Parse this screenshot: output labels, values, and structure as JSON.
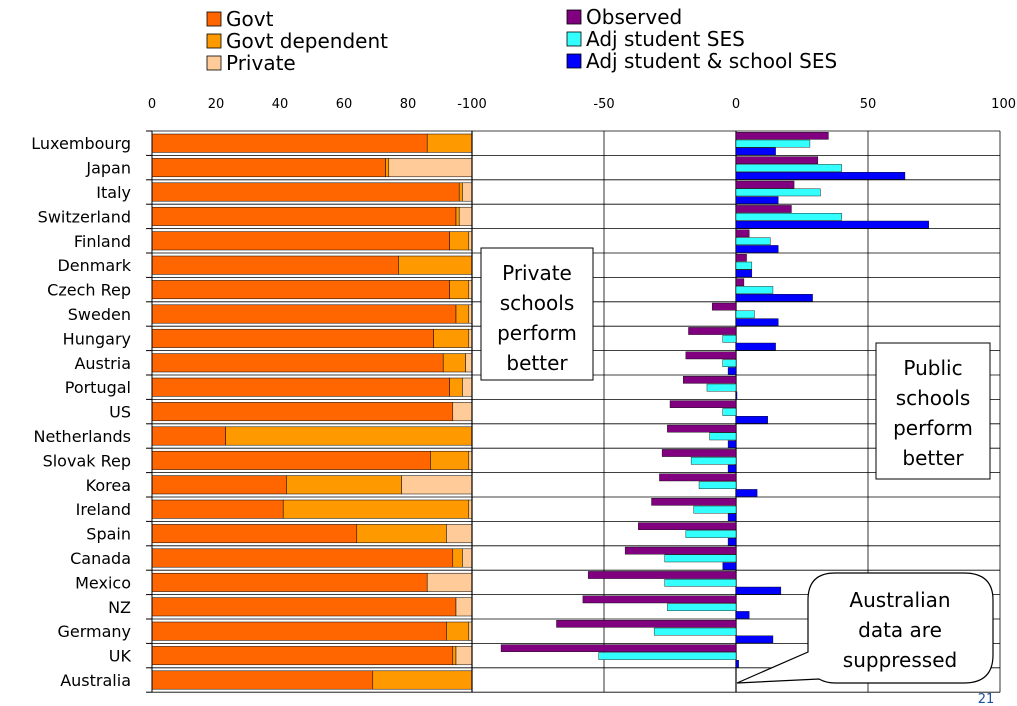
{
  "chart_data": [
    {
      "type": "bar",
      "orientation": "horizontal",
      "stacked": true,
      "xlim": [
        0,
        100
      ],
      "x_ticks": [
        "0",
        "20",
        "40",
        "60",
        "80",
        "100"
      ],
      "categories": [
        "Luxembourg",
        "Japan",
        "Italy",
        "Switzerland",
        "Finland",
        "Denmark",
        "Czech Rep",
        "Sweden",
        "Hungary",
        "Austria",
        "Portugal",
        "US",
        "Netherlands",
        "Slovak Rep",
        "Korea",
        "Ireland",
        "Spain",
        "Canada",
        "Mexico",
        "NZ",
        "Germany",
        "UK",
        "Australia"
      ],
      "series": [
        {
          "name": "Govt",
          "color": "#ff6600",
          "values": [
            86,
            73,
            96,
            95,
            93,
            77,
            93,
            95,
            88,
            91,
            93,
            94,
            23,
            87,
            42,
            41,
            64,
            94,
            86,
            95,
            92,
            94,
            69
          ]
        },
        {
          "name": "Govt dependent",
          "color": "#ff9900",
          "values": [
            14,
            1,
            1,
            1,
            6,
            23,
            6,
            4,
            11,
            7,
            4,
            0,
            77,
            12,
            36,
            58,
            28,
            3,
            0,
            0,
            7,
            1,
            31
          ]
        },
        {
          "name": "Private",
          "color": "#ffcc99",
          "values": [
            0,
            26,
            3,
            4,
            1,
            0,
            1,
            1,
            1,
            2,
            3,
            6,
            0,
            1,
            22,
            1,
            8,
            3,
            14,
            5,
            1,
            5,
            0
          ]
        }
      ],
      "legend_position": "top-left",
      "grid": true
    },
    {
      "type": "bar",
      "orientation": "horizontal",
      "xlim": [
        -100,
        100
      ],
      "x_ticks": [
        "-100",
        "-50",
        "0",
        "50",
        "100"
      ],
      "categories": [
        "Luxembourg",
        "Japan",
        "Italy",
        "Switzerland",
        "Finland",
        "Denmark",
        "Czech Rep",
        "Sweden",
        "Hungary",
        "Austria",
        "Portugal",
        "US",
        "Netherlands",
        "Slovak Rep",
        "Korea",
        "Ireland",
        "Spain",
        "Canada",
        "Mexico",
        "NZ",
        "Germany",
        "UK",
        "Australia"
      ],
      "series": [
        {
          "name": "Observed",
          "color": "#800080",
          "values": [
            35,
            31,
            22,
            21,
            5,
            4,
            3,
            -9,
            -18,
            -19,
            -20,
            -25,
            -26,
            -28,
            -29,
            -32,
            -37,
            -42,
            -56,
            -58,
            -68,
            -89,
            null
          ]
        },
        {
          "name": "Adj student SES",
          "color": "#33ffff",
          "values": [
            28,
            40,
            32,
            40,
            13,
            6,
            14,
            7,
            -5,
            -5,
            -11,
            -5,
            -10,
            -17,
            -14,
            -16,
            -19,
            -27,
            -27,
            -26,
            -31,
            -52,
            null
          ]
        },
        {
          "name": "Adj student & school SES",
          "color": "#0000ff",
          "values": [
            15,
            64,
            16,
            73,
            16,
            6,
            29,
            16,
            15,
            -3,
            0,
            12,
            -3,
            -3,
            8,
            -3,
            -3,
            -5,
            17,
            5,
            14,
            1,
            null
          ]
        }
      ],
      "legend_position": "top",
      "grid": true
    }
  ],
  "callouts": {
    "private": [
      "Private",
      "schools",
      "perform",
      "better"
    ],
    "public": [
      "Public",
      "schools",
      "perform",
      "better"
    ],
    "australia": [
      "Australian",
      "data are",
      "suppressed"
    ]
  },
  "page_number": "21"
}
